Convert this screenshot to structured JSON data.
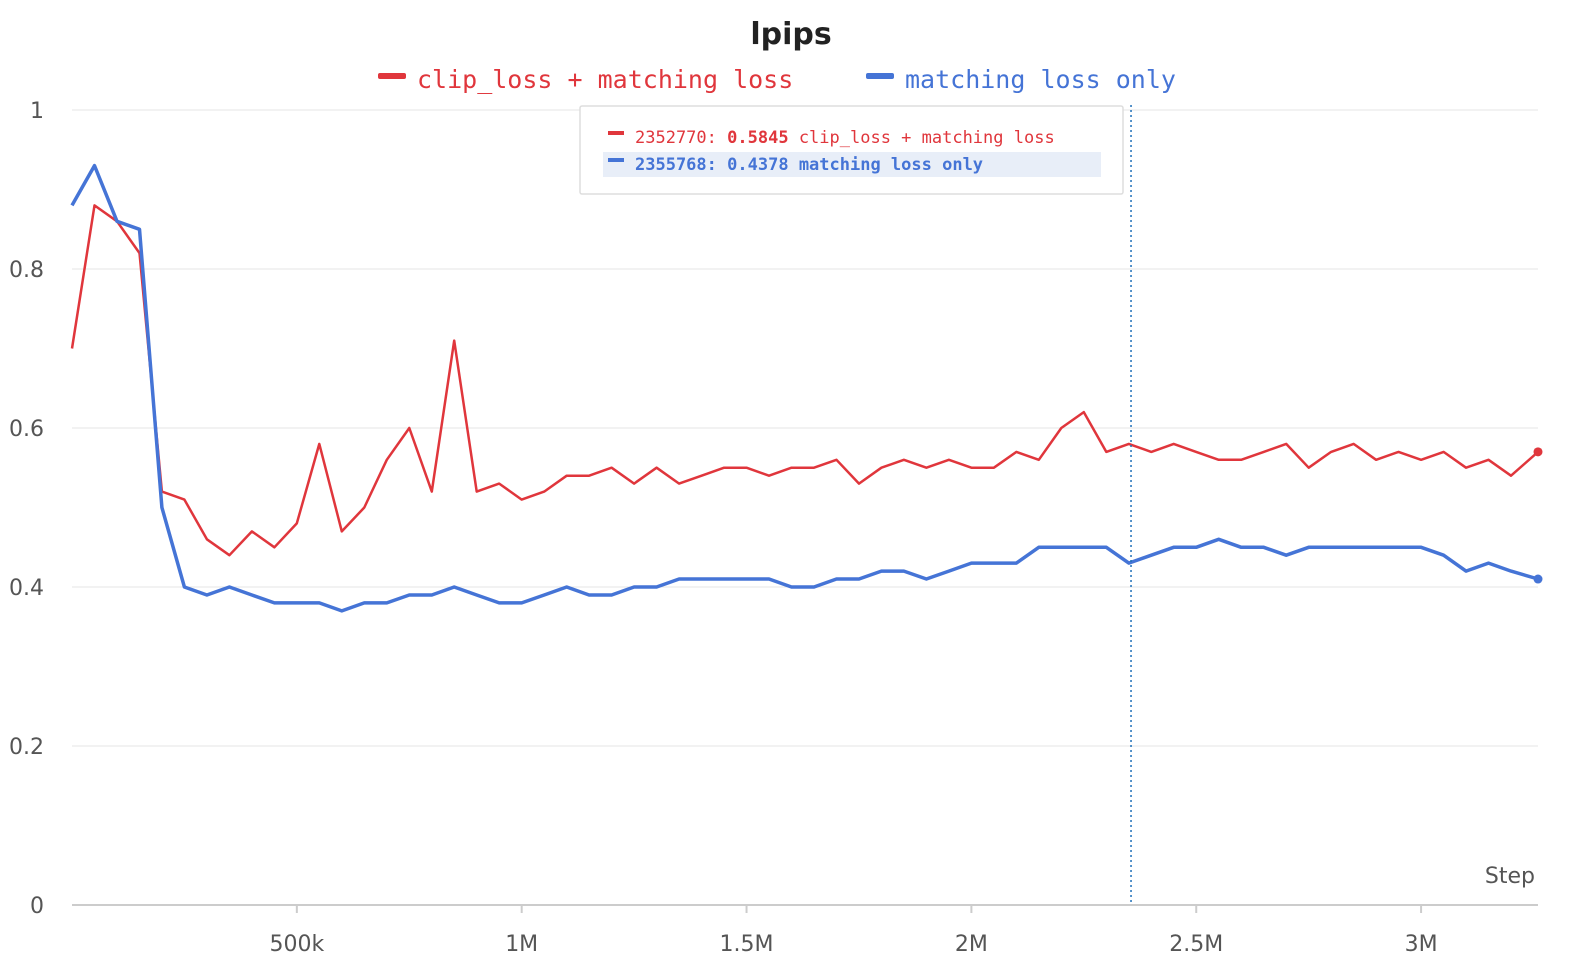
{
  "chart_data": {
    "type": "line",
    "title": "lpips",
    "xlabel": "Step",
    "ylabel": "",
    "xlim": [
      0,
      3260000
    ],
    "ylim": [
      0,
      1
    ],
    "grid": true,
    "legend_position": "top-center",
    "x_ticks": [
      {
        "value": 500000,
        "label": "500k"
      },
      {
        "value": 1000000,
        "label": "1M"
      },
      {
        "value": 1500000,
        "label": "1.5M"
      },
      {
        "value": 2000000,
        "label": "2M"
      },
      {
        "value": 2500000,
        "label": "2.5M"
      },
      {
        "value": 3000000,
        "label": "3M"
      }
    ],
    "y_ticks": [
      {
        "value": 0,
        "label": "0"
      },
      {
        "value": 0.2,
        "label": "0.2"
      },
      {
        "value": 0.4,
        "label": "0.4"
      },
      {
        "value": 0.6,
        "label": "0.6"
      },
      {
        "value": 0.8,
        "label": "0.8"
      },
      {
        "value": 1,
        "label": "1"
      }
    ],
    "series": [
      {
        "name": "clip_loss + matching loss",
        "color": "#e0363c",
        "x": [
          0,
          50000,
          100000,
          150000,
          200000,
          250000,
          300000,
          350000,
          400000,
          450000,
          500000,
          550000,
          600000,
          650000,
          700000,
          750000,
          800000,
          850000,
          900000,
          950000,
          1000000,
          1050000,
          1100000,
          1150000,
          1200000,
          1250000,
          1300000,
          1350000,
          1400000,
          1450000,
          1500000,
          1550000,
          1600000,
          1650000,
          1700000,
          1750000,
          1800000,
          1850000,
          1900000,
          1950000,
          2000000,
          2050000,
          2100000,
          2150000,
          2200000,
          2250000,
          2300000,
          2350000,
          2400000,
          2450000,
          2500000,
          2550000,
          2600000,
          2650000,
          2700000,
          2750000,
          2800000,
          2850000,
          2900000,
          2950000,
          3000000,
          3050000,
          3100000,
          3150000,
          3200000,
          3260000
        ],
        "values": [
          0.7,
          0.88,
          0.86,
          0.82,
          0.52,
          0.51,
          0.46,
          0.44,
          0.47,
          0.45,
          0.48,
          0.58,
          0.47,
          0.5,
          0.56,
          0.6,
          0.52,
          0.71,
          0.52,
          0.53,
          0.51,
          0.52,
          0.54,
          0.54,
          0.55,
          0.53,
          0.55,
          0.53,
          0.54,
          0.55,
          0.55,
          0.54,
          0.55,
          0.55,
          0.56,
          0.53,
          0.55,
          0.56,
          0.55,
          0.56,
          0.55,
          0.55,
          0.57,
          0.56,
          0.6,
          0.62,
          0.57,
          0.58,
          0.57,
          0.58,
          0.57,
          0.56,
          0.56,
          0.57,
          0.58,
          0.55,
          0.57,
          0.58,
          0.56,
          0.57,
          0.56,
          0.57,
          0.55,
          0.56,
          0.54,
          0.57
        ]
      },
      {
        "name": "matching loss only",
        "color": "#4574d6",
        "x": [
          0,
          50000,
          100000,
          150000,
          200000,
          250000,
          300000,
          350000,
          400000,
          450000,
          500000,
          550000,
          600000,
          650000,
          700000,
          750000,
          800000,
          850000,
          900000,
          950000,
          1000000,
          1050000,
          1100000,
          1150000,
          1200000,
          1250000,
          1300000,
          1350000,
          1400000,
          1450000,
          1500000,
          1550000,
          1600000,
          1650000,
          1700000,
          1750000,
          1800000,
          1850000,
          1900000,
          1950000,
          2000000,
          2050000,
          2100000,
          2150000,
          2200000,
          2250000,
          2300000,
          2350000,
          2400000,
          2450000,
          2500000,
          2550000,
          2600000,
          2650000,
          2700000,
          2750000,
          2800000,
          2850000,
          2900000,
          2950000,
          3000000,
          3050000,
          3100000,
          3150000,
          3200000,
          3260000
        ],
        "values": [
          0.88,
          0.93,
          0.86,
          0.85,
          0.5,
          0.4,
          0.39,
          0.4,
          0.39,
          0.38,
          0.38,
          0.38,
          0.37,
          0.38,
          0.38,
          0.39,
          0.39,
          0.4,
          0.39,
          0.38,
          0.38,
          0.39,
          0.4,
          0.39,
          0.39,
          0.4,
          0.4,
          0.41,
          0.41,
          0.41,
          0.41,
          0.41,
          0.4,
          0.4,
          0.41,
          0.41,
          0.42,
          0.42,
          0.41,
          0.42,
          0.43,
          0.43,
          0.43,
          0.45,
          0.45,
          0.45,
          0.45,
          0.43,
          0.44,
          0.45,
          0.45,
          0.46,
          0.45,
          0.45,
          0.44,
          0.45,
          0.45,
          0.45,
          0.45,
          0.45,
          0.45,
          0.44,
          0.42,
          0.43,
          0.42,
          0.41
        ]
      }
    ],
    "hover": {
      "x": 2355000,
      "entries": [
        {
          "step": "2352770:",
          "value": "0.5845",
          "name": "clip_loss + matching loss",
          "color": "#e0363c",
          "highlighted": false
        },
        {
          "step": "2355768:",
          "value": "0.4378",
          "name": "matching loss only",
          "color": "#4574d6",
          "highlighted": true
        }
      ]
    }
  }
}
